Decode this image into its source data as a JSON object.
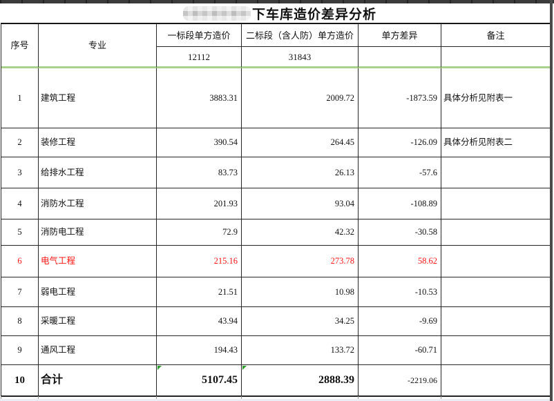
{
  "title": {
    "text": "下车库造价差异分析",
    "redacted_prefix": "（马赛克遮盖）"
  },
  "table": {
    "columns": [
      {
        "label": "序号"
      },
      {
        "label": "专业"
      },
      {
        "label": "一标段单方造价"
      },
      {
        "label": "二标段（含人防）单方造价"
      },
      {
        "label": "单方差异"
      },
      {
        "label": "备注"
      }
    ],
    "subheader": {
      "a": "12112",
      "b": "31843",
      "diff": "",
      "note": ""
    },
    "rows": [
      {
        "no": "1",
        "name": "建筑工程",
        "a": "3883.31",
        "b": "2009.72",
        "diff": "-1873.59",
        "note": "具体分析见附表一",
        "red": false
      },
      {
        "no": "2",
        "name": "装修工程",
        "a": "390.54",
        "b": "264.45",
        "diff": "-126.09",
        "note": "具体分析见附表二",
        "red": false
      },
      {
        "no": "3",
        "name": "给排水工程",
        "a": "83.73",
        "b": "26.13",
        "diff": "-57.6",
        "note": "",
        "red": false
      },
      {
        "no": "4",
        "name": "消防水工程",
        "a": "201.93",
        "b": "93.04",
        "diff": "-108.89",
        "note": "",
        "red": false
      },
      {
        "no": "5",
        "name": "消防电工程",
        "a": "72.9",
        "b": "42.32",
        "diff": "-30.58",
        "note": "",
        "red": false
      },
      {
        "no": "6",
        "name": "电气工程",
        "a": "215.16",
        "b": "273.78",
        "diff": "58.62",
        "note": "",
        "red": true
      },
      {
        "no": "7",
        "name": "弱电工程",
        "a": "21.51",
        "b": "10.98",
        "diff": "-10.53",
        "note": "",
        "red": false
      },
      {
        "no": "8",
        "name": "采暖工程",
        "a": "43.94",
        "b": "34.25",
        "diff": "-9.69",
        "note": "",
        "red": false
      },
      {
        "no": "9",
        "name": "通风工程",
        "a": "194.43",
        "b": "133.72",
        "diff": "-60.71",
        "note": "",
        "red": false
      }
    ],
    "total": {
      "no": "10",
      "name": "合计",
      "a": "5107.45",
      "b": "2888.39",
      "diff": "-2219.06",
      "note": ""
    }
  },
  "colors": {
    "pane_divider_green": "#a9d18e",
    "highlight_red": "#ff1414",
    "flag_triangle_green": "#2e9e2e",
    "grid_border": "#262626"
  }
}
